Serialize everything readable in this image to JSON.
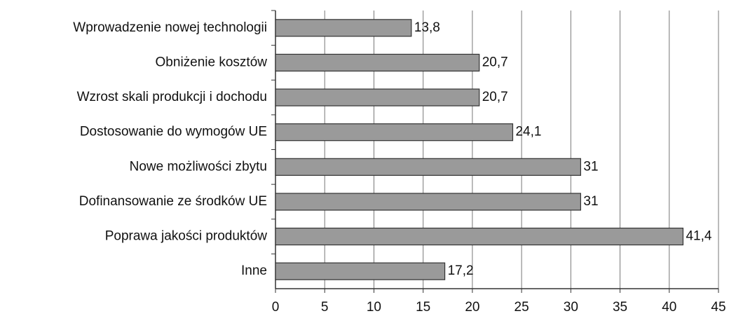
{
  "chart_data": {
    "type": "bar",
    "orientation": "horizontal",
    "categories": [
      "Wprowadzenie nowej technologii",
      "Obniżenie kosztów",
      "Wzrost skali produkcji i dochodu",
      "Dostosowanie do wymogów UE",
      "Nowe możliwości zbytu",
      "Dofinansowanie ze środków UE",
      "Poprawa jakości produktów",
      "Inne"
    ],
    "values": [
      13.8,
      20.7,
      20.7,
      24.1,
      31,
      31,
      41.4,
      17.2
    ],
    "value_labels": [
      "13,8",
      "20,7",
      "20,7",
      "24,1",
      "31",
      "31",
      "41,4",
      "17,2"
    ],
    "color": "#9a9a9a",
    "xlim": [
      0,
      45
    ],
    "xticks": [
      0,
      5,
      10,
      15,
      20,
      25,
      30,
      35,
      40,
      45
    ],
    "grid": true
  }
}
